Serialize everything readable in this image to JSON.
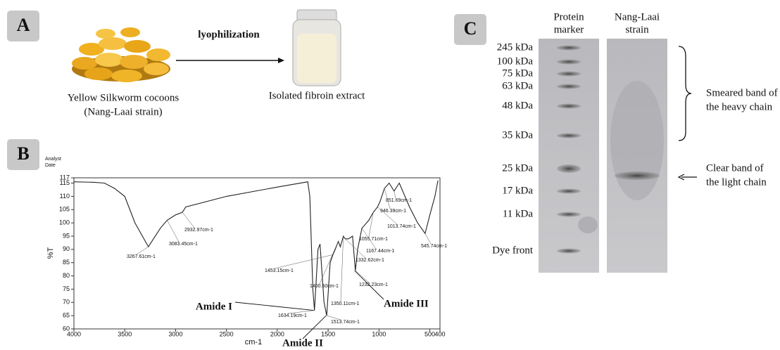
{
  "panel_a": {
    "label": "A",
    "arrow_label": "lyophilization",
    "cocoon_caption": [
      "Yellow Silkworm cocoons",
      "(Nang-Laai strain)"
    ],
    "extract_caption": "Isolated fibroin extract"
  },
  "panel_b": {
    "label": "B"
  },
  "chart_data": {
    "type": "line",
    "header": [
      "Analyst",
      "Date"
    ],
    "xlabel": "cm-1",
    "ylabel": "%T",
    "xlim": [
      4000,
      400
    ],
    "ylim": [
      60,
      117
    ],
    "xticks": [
      4000,
      3500,
      3000,
      2500,
      2000,
      1500,
      1000,
      500,
      400
    ],
    "yticks": [
      60,
      65,
      70,
      75,
      80,
      85,
      90,
      95,
      100,
      105,
      110,
      115,
      117
    ],
    "x": [
      4000,
      3800,
      3700,
      3600,
      3500,
      3400,
      3267.61,
      3150,
      3083.45,
      3000,
      2932.97,
      2900,
      2500,
      2000,
      1700,
      1680,
      1650,
      1634.19,
      1600,
      1580,
      1540,
      1513.74,
      1480,
      1453.15,
      1430,
      1400.5,
      1380,
      1350.11,
      1332.62,
      1300,
      1260,
      1232.23,
      1210,
      1167.44,
      1100,
      1055.71,
      1013.74,
      990,
      946.39,
      900,
      851.69,
      800,
      700,
      620,
      545.74,
      500,
      450,
      420
    ],
    "series": [
      {
        "color": "#222222",
        "values": [
          115.5,
          115.3,
          115,
          113,
          110,
          100,
          91,
          98,
          101,
          103,
          104,
          106,
          110,
          113.5,
          115.5,
          110,
          75,
          67,
          90,
          92,
          70,
          65,
          85,
          88,
          90,
          93,
          91,
          95,
          94,
          94,
          95,
          82,
          90,
          98,
          101,
          104,
          106,
          108,
          113,
          115,
          112,
          115,
          106,
          100,
          96,
          103,
          110,
          116
        ]
      }
    ],
    "annotations": [
      {
        "label": "3267.61cm-1",
        "x": 3267.61,
        "y": 91
      },
      {
        "label": "3083.45cm-1",
        "x": 3083.45,
        "y": 101
      },
      {
        "label": "2932.97cm-1",
        "x": 2932.97,
        "y": 104
      },
      {
        "label": "851.69cm-1",
        "x": 851.69,
        "y": 112
      },
      {
        "label": "946.39cm-1",
        "x": 946.39,
        "y": 113
      },
      {
        "label": "1013.74cm-1",
        "x": 1013.74,
        "y": 106
      },
      {
        "label": "1055.71cm-1",
        "x": 1055.71,
        "y": 104
      },
      {
        "label": "1167.44cm-1",
        "x": 1167.44,
        "y": 98
      },
      {
        "label": "1332.62cm-1",
        "x": 1332.62,
        "y": 94
      },
      {
        "label": "1453.15cm-1",
        "x": 1453.15,
        "y": 88
      },
      {
        "label": "1232.23cm-1",
        "x": 1232.23,
        "y": 82
      },
      {
        "label": "1400.50cm-1",
        "x": 1400.5,
        "y": 93
      },
      {
        "label": "1350.11cm-1",
        "x": 1350.11,
        "y": 95
      },
      {
        "label": "1634.19cm-1",
        "x": 1634.19,
        "y": 67
      },
      {
        "label": "1513.74cm-1",
        "x": 1513.74,
        "y": 65
      },
      {
        "label": "545.74cm-1",
        "x": 545.74,
        "y": 96
      }
    ],
    "callouts": [
      {
        "label": "Amide I",
        "x": 1634.19,
        "y": 67
      },
      {
        "label": "Amide II",
        "x": 1513.74,
        "y": 65
      },
      {
        "label": "Amide III",
        "x": 1232.23,
        "y": 82
      }
    ]
  },
  "panel_c": {
    "label": "C",
    "lane_headers": [
      [
        "Protein",
        "marker"
      ],
      [
        "Nang-Laai",
        "strain"
      ]
    ],
    "markers": [
      "245 kDa",
      "100 kDa",
      "75 kDa",
      "63 kDa",
      "48 kDa",
      "35 kDa",
      "25 kDa",
      "17 kDa",
      "11 kDa",
      "Dye front"
    ],
    "heavy_chain_note": [
      "Smeared band of",
      "the heavy chain"
    ],
    "light_chain_note": [
      "Clear band of",
      "the light chain"
    ]
  }
}
